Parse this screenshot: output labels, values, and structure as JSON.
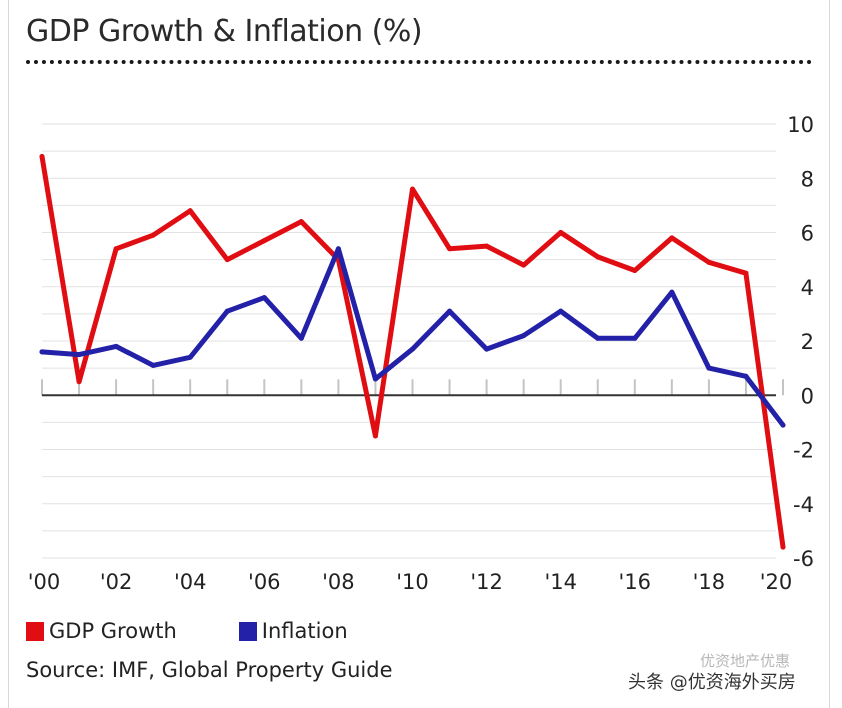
{
  "title": "GDP Growth & Inflation (%)",
  "legend": {
    "gdp": "GDP Growth",
    "inflation": "Inflation"
  },
  "source": "Source: IMF, Global Property Guide",
  "watermark": "头条 @优资海外买房",
  "watermark_ghost": "优资地产优惠",
  "colors": {
    "gdp": "#e00d12",
    "inflation": "#2321a8",
    "grid": "#e2e2e2",
    "zero_line": "#333333",
    "text": "#222222"
  },
  "chart_data": {
    "type": "line",
    "title": "GDP Growth & Inflation (%)",
    "xlabel": "",
    "ylabel": "",
    "x": [
      2000,
      2001,
      2002,
      2003,
      2004,
      2005,
      2006,
      2007,
      2008,
      2009,
      2010,
      2011,
      2012,
      2013,
      2014,
      2015,
      2016,
      2017,
      2018,
      2019,
      2020
    ],
    "x_tick_labels": [
      "'00",
      "'02",
      "'04",
      "'06",
      "'08",
      "'10",
      "'12",
      "'14",
      "'16",
      "'18",
      "'20"
    ],
    "y_tick_labels": [
      "10",
      "8",
      "6",
      "4",
      "2",
      "0",
      "-2",
      "-4",
      "-6"
    ],
    "ylim": [
      -6,
      10
    ],
    "grid": true,
    "legend_position": "bottom-left",
    "series": [
      {
        "name": "GDP Growth",
        "color": "#e00d12",
        "values": [
          8.8,
          0.5,
          5.4,
          5.9,
          6.8,
          5.0,
          5.7,
          6.4,
          5.0,
          -1.5,
          7.6,
          5.4,
          5.5,
          4.8,
          6.0,
          5.1,
          4.6,
          5.8,
          4.9,
          4.5,
          -5.6
        ]
      },
      {
        "name": "Inflation",
        "color": "#2321a8",
        "values": [
          1.6,
          1.5,
          1.8,
          1.1,
          1.4,
          3.1,
          3.6,
          2.1,
          5.4,
          0.6,
          1.7,
          3.1,
          1.7,
          2.2,
          3.1,
          2.1,
          2.1,
          3.8,
          1.0,
          0.7,
          -1.1
        ]
      }
    ]
  }
}
